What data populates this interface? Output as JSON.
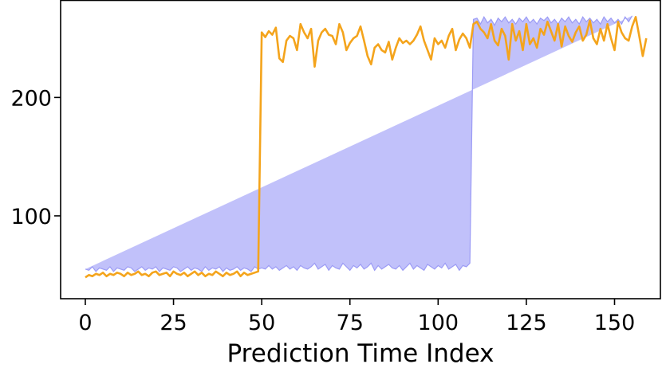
{
  "colors": {
    "band_fill": "#babaf9",
    "band_edge": "#9b9bf5",
    "line": "#f4a41c",
    "axes": "#000000",
    "background": "#ffffff"
  },
  "chart_data": {
    "type": "line",
    "title": "",
    "xlabel": "Prediction Time Index",
    "ylabel": "",
    "xlim": [
      -7,
      163
    ],
    "ylim": [
      30,
      282
    ],
    "xticks": [
      0,
      25,
      50,
      75,
      100,
      125,
      150
    ],
    "xtick_labels": [
      "0",
      "25",
      "50",
      "75",
      "100",
      "125",
      "150"
    ],
    "yticks": [
      100,
      200
    ],
    "ytick_labels": [
      "100",
      "200"
    ],
    "grid": false,
    "legend": "none",
    "x": [
      0,
      1,
      2,
      3,
      4,
      5,
      6,
      7,
      8,
      9,
      10,
      11,
      12,
      13,
      14,
      15,
      16,
      17,
      18,
      19,
      20,
      21,
      22,
      23,
      24,
      25,
      26,
      27,
      28,
      29,
      30,
      31,
      32,
      33,
      34,
      35,
      36,
      37,
      38,
      39,
      40,
      41,
      42,
      43,
      44,
      45,
      46,
      47,
      48,
      49,
      50,
      51,
      52,
      53,
      54,
      55,
      56,
      57,
      58,
      59,
      60,
      61,
      62,
      63,
      64,
      65,
      66,
      67,
      68,
      69,
      70,
      71,
      72,
      73,
      74,
      75,
      76,
      77,
      78,
      79,
      80,
      81,
      82,
      83,
      84,
      85,
      86,
      87,
      88,
      89,
      90,
      91,
      92,
      93,
      94,
      95,
      96,
      97,
      98,
      99,
      100,
      101,
      102,
      103,
      104,
      105,
      106,
      107,
      108,
      109,
      110,
      111,
      112,
      113,
      114,
      115,
      116,
      117,
      118,
      119,
      120,
      121,
      122,
      123,
      124,
      125,
      126,
      127,
      128,
      129,
      130,
      131,
      132,
      133,
      134,
      135,
      136,
      137,
      138,
      139,
      140,
      141,
      142,
      143,
      144,
      145,
      146,
      147,
      148,
      149,
      150,
      151,
      152,
      153,
      154,
      155,
      156,
      157,
      158,
      159
    ],
    "series": [
      {
        "role": "band",
        "upper": [
          55,
          54,
          57,
          53,
          56,
          55,
          54,
          57,
          53,
          56,
          55,
          54,
          57,
          56,
          53,
          55,
          57,
          54,
          56,
          55,
          57,
          53,
          56,
          55,
          54,
          57,
          56,
          53,
          55,
          57,
          54,
          56,
          55,
          53,
          57,
          54,
          56,
          55,
          57,
          53,
          56,
          54,
          55,
          57,
          54,
          56,
          55,
          53,
          57,
          55,
          56,
          55,
          58,
          55,
          57,
          54,
          56,
          58,
          55,
          57,
          54,
          58,
          56,
          55,
          57,
          60,
          55,
          57,
          59,
          54,
          58,
          56,
          55,
          60,
          57,
          54,
          58,
          56,
          59,
          55,
          57,
          60,
          54,
          58,
          55,
          57,
          59,
          56,
          55,
          58,
          54,
          57,
          60,
          55,
          58,
          56,
          54,
          59,
          57,
          55,
          58,
          56,
          60,
          55,
          57,
          59,
          54,
          58,
          57,
          60,
          266,
          267,
          262,
          268,
          263,
          266,
          261,
          267,
          264,
          268,
          263,
          266,
          262,
          267,
          264,
          268,
          263,
          266,
          262,
          267,
          265,
          268,
          263,
          266,
          262,
          267,
          264,
          268,
          263,
          266,
          262,
          268,
          264,
          267,
          263,
          266,
          262,
          268,
          264,
          267,
          263,
          266,
          262,
          268,
          264,
          269
        ],
        "lower": [
          44,
          46,
          44,
          45,
          43,
          46,
          44,
          45,
          46,
          43,
          45,
          44,
          46,
          43,
          45,
          44,
          46,
          45,
          43,
          44,
          46,
          45,
          43,
          44,
          46,
          45,
          44,
          43,
          46,
          44,
          45,
          43,
          46,
          44,
          45,
          43,
          46,
          45,
          44,
          43,
          46,
          44,
          45,
          43,
          46,
          45,
          44,
          43,
          46,
          44,
          43,
          44,
          42,
          45,
          43,
          41,
          44,
          42,
          45,
          43,
          41,
          44,
          42,
          43,
          45,
          41,
          44,
          42,
          43,
          45,
          41,
          43,
          44,
          42,
          45,
          41,
          43,
          44,
          42,
          43,
          45,
          41,
          44,
          42,
          43,
          45,
          41,
          43,
          44,
          42,
          45,
          41,
          43,
          44,
          42,
          45,
          41,
          43,
          44,
          42,
          45,
          41,
          43,
          44,
          42,
          45,
          41,
          43,
          44,
          42,
          222,
          218,
          225,
          221,
          219,
          226,
          222,
          220,
          224,
          218,
          223,
          221,
          225,
          219,
          222,
          226,
          220,
          223,
          218,
          224,
          221,
          225,
          219,
          222,
          226,
          220,
          223,
          218,
          224,
          221,
          225,
          219,
          222,
          226,
          220,
          223,
          218,
          224,
          221,
          225,
          219,
          222,
          226,
          220,
          223,
          219
        ]
      },
      {
        "role": "line",
        "values": [
          48,
          50,
          49,
          51,
          50,
          52,
          49,
          51,
          50,
          52,
          51,
          49,
          52,
          50,
          51,
          53,
          50,
          51,
          49,
          52,
          53,
          50,
          51,
          52,
          49,
          53,
          51,
          50,
          52,
          49,
          51,
          53,
          50,
          52,
          49,
          51,
          50,
          53,
          51,
          49,
          52,
          50,
          51,
          53,
          49,
          52,
          50,
          51,
          52,
          53,
          255,
          251,
          256,
          253,
          259,
          233,
          230,
          248,
          252,
          250,
          240,
          262,
          255,
          250,
          258,
          226,
          248,
          255,
          258,
          253,
          252,
          245,
          262,
          255,
          240,
          246,
          250,
          252,
          260,
          248,
          235,
          228,
          242,
          245,
          240,
          238,
          247,
          232,
          242,
          250,
          246,
          248,
          245,
          248,
          253,
          260,
          248,
          240,
          232,
          250,
          245,
          248,
          242,
          252,
          258,
          240,
          249,
          254,
          250,
          242,
          262,
          264,
          258,
          255,
          250,
          262,
          248,
          244,
          258,
          252,
          232,
          262,
          248,
          256,
          240,
          262,
          245,
          250,
          242,
          258,
          253,
          264,
          256,
          248,
          262,
          243,
          260,
          252,
          247,
          255,
          260,
          248,
          253,
          265,
          250,
          245,
          258,
          248,
          262,
          250,
          240,
          264,
          255,
          250,
          248,
          260,
          268,
          252,
          235,
          250
        ]
      }
    ]
  }
}
